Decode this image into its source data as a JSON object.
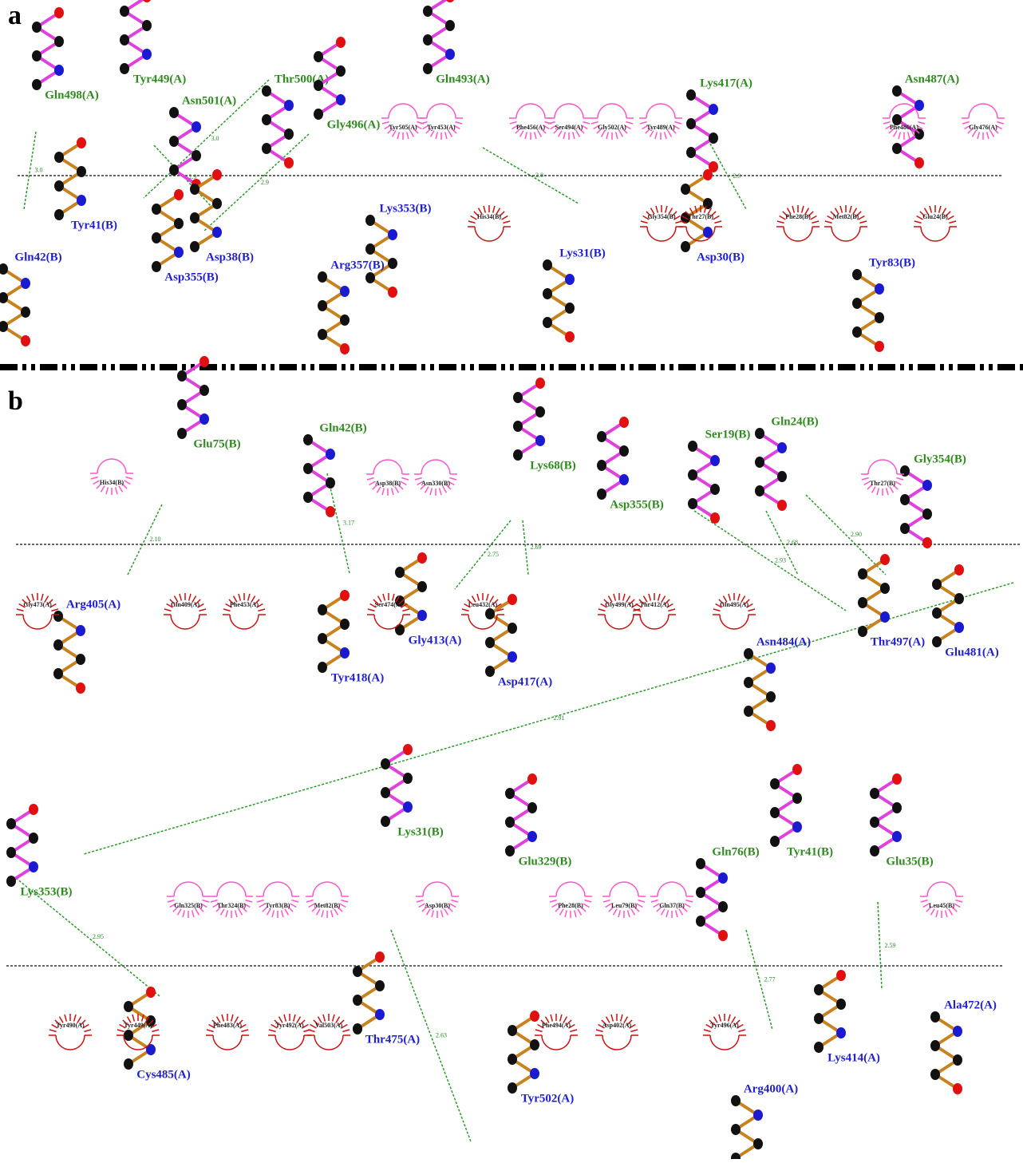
{
  "panel_a": {
    "label": "a",
    "residues": [
      "Gln498(A)",
      "Tyr449(A)",
      "Asn501(A)",
      "Thr500(A)",
      "Gly496(A)",
      "Gln493(A)",
      "Lys417(A)",
      "Asn487(A)",
      "Tyr41(B)",
      "Gln42(B)",
      "Asp38(B)",
      "Asp355(B)",
      "Lys353(B)",
      "Arg357(B)",
      "Lys31(B)",
      "Asp30(B)",
      "Tyr83(B)"
    ],
    "hydrophobic": [
      "Tyr505(A)",
      "Tyr453(A)",
      "Phe456(A)",
      "Ser494(A)",
      "Gly502(A)",
      "Tyr489(A)",
      "Phe486(A)",
      "Gly476(A)",
      "His34(B)",
      "Gly354(B)",
      "Thr27(B)",
      "Phe28(B)",
      "Met82(B)",
      "Glu24(B)"
    ],
    "distances": [
      "3.0",
      "2.9",
      "3.0",
      "2.9",
      "2.8",
      "2.9"
    ]
  },
  "panel_b": {
    "label": "b",
    "residues": [
      "Glu75(B)",
      "Gln42(B)",
      "Lys68(B)",
      "Ser19(B)",
      "Gln24(B)",
      "Gly354(B)",
      "Asp355(B)",
      "Arg405(A)",
      "Tyr418(A)",
      "Gly413(A)",
      "Asp417(A)",
      "Asn484(A)",
      "Thr497(A)",
      "Glu481(A)",
      "Lys31(B)",
      "Glu329(B)",
      "Gln76(B)",
      "Tyr41(B)",
      "Glu35(B)",
      "Lys353(B)",
      "Cys485(A)",
      "Thr475(A)",
      "Tyr502(A)",
      "Arg400(A)",
      "Lys414(A)",
      "Ala472(A)"
    ],
    "hydrophobic": [
      "His34(B)",
      "Asp38(B)",
      "Asn330(B)",
      "Thr27(B)",
      "Gly473(A)",
      "Gln409(A)",
      "Phe453(A)",
      "Ser474(A)",
      "Leu432(A)",
      "Gly499(A)",
      "Thr412(A)",
      "Gln495(A)",
      "Gln325(B)",
      "Thr324(B)",
      "Tyr83(B)",
      "Met82(B)",
      "Asp30(B)",
      "Phe28(B)",
      "Leu79(B)",
      "Gln37(B)",
      "Leu45(B)",
      "Tyr490(A)",
      "Tyr449(A)",
      "Phe483(A)",
      "Tyr492(A)",
      "Val503(A)",
      "Phe494(A)",
      "Asp402(A)",
      "Tyr496(A)"
    ],
    "distances": [
      "2.10",
      "3.17",
      "2.75",
      "2.69",
      "2.68",
      "2.90",
      "2.93",
      "2.91",
      "2.95",
      "2.77",
      "2.59",
      "2.63"
    ]
  }
}
